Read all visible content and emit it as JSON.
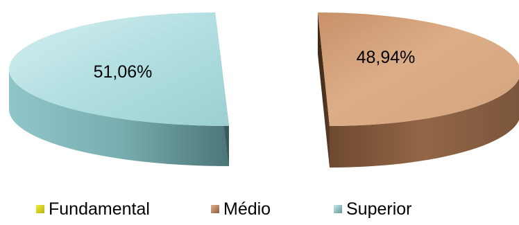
{
  "chart_data": {
    "type": "pie",
    "categories": [
      "Fundamental",
      "Médio",
      "Superior"
    ],
    "values": [
      0,
      48.94,
      51.06
    ],
    "data_labels": [
      "",
      "48,94%",
      "51,06%"
    ],
    "colors": [
      "#c8c81e",
      "#d19e73",
      "#a9d8da"
    ],
    "legend_position": "bottom",
    "style": "3d-exploded"
  }
}
